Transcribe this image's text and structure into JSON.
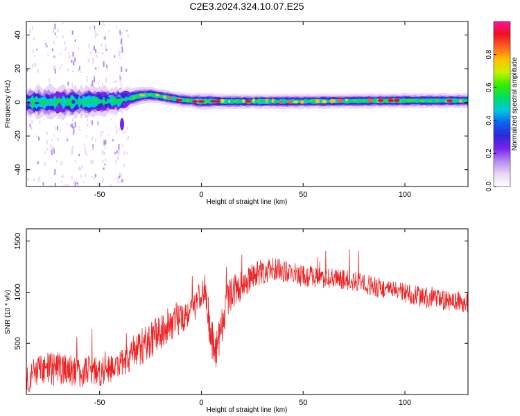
{
  "title": "C2E3.2024.324.10.07.E25",
  "colors": {
    "signal": "#ee2222",
    "axis": "#000000",
    "background": "#ffffff",
    "colormap": [
      "#ffffff",
      "#e9d6f7",
      "#b48af0",
      "#7a22ee",
      "#2a2ad8",
      "#1060f0",
      "#00c8e0",
      "#00dd66",
      "#33ee00",
      "#c8f000",
      "#ffc000",
      "#ff6020",
      "#ee1020",
      "#ff10a0"
    ]
  },
  "chart_data": [
    {
      "type": "heatmap",
      "xlabel": "Height of straight line (km)",
      "ylabel": "Frequency (Hz)",
      "xlim": [
        -86,
        131
      ],
      "ylim": [
        -50,
        48
      ],
      "xticks": [
        -50,
        0,
        50,
        100
      ],
      "yticks": [
        -40,
        -20,
        0,
        20,
        40
      ],
      "grid": false,
      "colorbar": {
        "label": "Normalized spectral amplitude",
        "range": [
          0.0,
          1.0
        ],
        "ticks": [
          0.0,
          0.2,
          0.4,
          0.6,
          0.8
        ]
      },
      "ridge": {
        "x": [
          -86,
          -70,
          -50,
          -40,
          -35,
          -30,
          -25,
          -20,
          -15,
          -10,
          -5,
          0,
          5,
          10,
          20,
          40,
          60,
          80,
          100,
          120,
          131
        ],
        "center_hz": [
          0,
          0,
          0.5,
          1,
          2.5,
          4,
          4.5,
          3.5,
          2.5,
          1.5,
          1,
          0.5,
          0.7,
          0.5,
          0.5,
          0.5,
          0.6,
          0.8,
          1,
          1,
          1
        ],
        "half_width_hz": [
          6,
          6.5,
          6,
          5,
          4,
          3.5,
          3.2,
          3,
          3,
          3,
          3,
          3.5,
          3.2,
          3,
          3,
          3,
          3,
          3,
          3,
          3,
          3
        ]
      }
    },
    {
      "type": "line",
      "xlabel": "Height of straight line (km)",
      "ylabel": "SNR (10 * v/v)",
      "xlim": [
        -86,
        131
      ],
      "ylim": [
        0,
        1620
      ],
      "xticks": [
        -50,
        0,
        50,
        100
      ],
      "yticks": [
        500,
        1000,
        1500
      ],
      "grid": false,
      "series": [
        {
          "color": "#ee2222",
          "x": [
            -86,
            -80,
            -75,
            -70,
            -65,
            -60,
            -55,
            -50,
            -45,
            -40,
            -35,
            -30,
            -25,
            -20,
            -15,
            -10,
            -5,
            0,
            2,
            4,
            6,
            8,
            10,
            12,
            15,
            20,
            25,
            30,
            35,
            40,
            45,
            50,
            55,
            60,
            65,
            70,
            75,
            80,
            85,
            90,
            95,
            100,
            105,
            110,
            115,
            120,
            125,
            131
          ],
          "values": [
            160,
            220,
            250,
            250,
            240,
            220,
            240,
            230,
            250,
            280,
            380,
            460,
            520,
            620,
            700,
            760,
            830,
            960,
            1050,
            720,
            420,
            480,
            650,
            900,
            1000,
            1070,
            1150,
            1200,
            1220,
            1210,
            1180,
            1160,
            1150,
            1140,
            1130,
            1120,
            1110,
            1080,
            1060,
            1030,
            1010,
            990,
            970,
            950,
            930,
            920,
            910,
            900
          ],
          "noise_amplitude": [
            150,
            160,
            170,
            170,
            160,
            160,
            150,
            150,
            140,
            140,
            170,
            180,
            180,
            170,
            170,
            170,
            150,
            150,
            160,
            250,
            200,
            200,
            200,
            170,
            160,
            150,
            130,
            130,
            120,
            110,
            110,
            110,
            110,
            100,
            100,
            100,
            100,
            100,
            100,
            100,
            100,
            100,
            100,
            100,
            100,
            100,
            100,
            100
          ]
        }
      ]
    }
  ]
}
